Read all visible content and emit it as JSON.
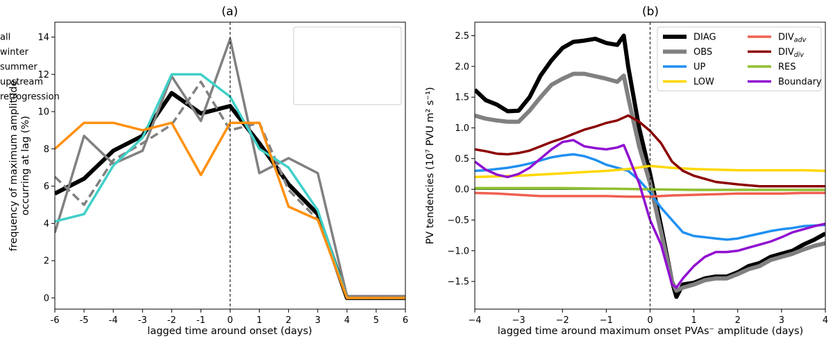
{
  "chart_data": [
    {
      "type": "line",
      "title": "(a)",
      "xlabel": "lagged time around onset (days)",
      "ylabel_lines": [
        "frequency of maximum amplitude",
        "occurring at lag (%)"
      ],
      "xlim": [
        -6,
        6
      ],
      "ylim": [
        -0.6,
        14.8
      ],
      "xticks": [
        -6,
        -5,
        -4,
        -3,
        -2,
        -1,
        0,
        1,
        2,
        3,
        4,
        5,
        6
      ],
      "yticks": [
        0,
        2,
        4,
        6,
        8,
        10,
        12,
        14
      ],
      "grid": false,
      "vline_x": 0,
      "legend_position": "upper-right",
      "series": [
        {
          "name": "all",
          "color": "#000000",
          "width": 6,
          "dash": "",
          "x": [
            -6,
            -5,
            -4,
            -3,
            -2,
            -1,
            0,
            1,
            2,
            3,
            4,
            5,
            6
          ],
          "y": [
            5.6,
            6.4,
            7.9,
            8.7,
            11.0,
            9.9,
            10.3,
            8.3,
            6.1,
            4.5,
            0.0,
            0.0,
            0.0
          ]
        },
        {
          "name": "winter",
          "color": "#808080",
          "width": 3.5,
          "dash": "",
          "x": [
            -6,
            -5,
            -4,
            -3,
            -2,
            -1,
            0,
            1,
            2,
            3,
            4,
            5,
            6
          ],
          "y": [
            3.5,
            8.7,
            7.2,
            7.9,
            11.9,
            9.5,
            13.9,
            6.7,
            7.5,
            6.7,
            0.1,
            0.1,
            0.1
          ]
        },
        {
          "name": "summer",
          "color": "#808080",
          "width": 3.5,
          "dash": "12 6",
          "x": [
            -6,
            -5,
            -4,
            -3,
            -2,
            -1,
            0,
            1,
            2,
            3,
            4,
            5,
            6
          ],
          "y": [
            6.5,
            5.0,
            7.4,
            8.3,
            9.3,
            11.6,
            9.0,
            9.4,
            5.8,
            4.2,
            0.0,
            0.0,
            0.0
          ]
        },
        {
          "name": "upstream",
          "color": "#40d0c8",
          "width": 3.5,
          "dash": "",
          "x": [
            -6,
            -5,
            -4,
            -3,
            -2,
            -1,
            0,
            1,
            2,
            3,
            4,
            5,
            6
          ],
          "y": [
            4.1,
            4.5,
            7.1,
            8.6,
            12.0,
            12.0,
            10.8,
            8.0,
            7.0,
            4.7,
            0.0,
            0.0,
            0.0
          ]
        },
        {
          "name": "retrogression",
          "color": "#ff9010",
          "width": 3.5,
          "dash": "",
          "x": [
            -6,
            -5,
            -4,
            -3,
            -2,
            -1,
            0,
            1,
            2,
            3,
            4,
            5,
            6
          ],
          "y": [
            8.0,
            9.4,
            9.4,
            9.0,
            9.4,
            6.6,
            9.4,
            9.4,
            4.9,
            4.2,
            0.0,
            0.0,
            0.0
          ]
        }
      ]
    },
    {
      "type": "line",
      "title": "(b)",
      "xlabel": "lagged time around maximum onset PVAs⁻ amplitude (days)",
      "ylabel": "PV tendencies (10⁷ PVU m² s⁻¹)",
      "xlim": [
        -4,
        4
      ],
      "ylim": [
        -1.95,
        2.72
      ],
      "xticks": [
        -4,
        -3,
        -2,
        -1,
        0,
        1,
        2,
        3,
        4
      ],
      "yticks": [
        -1.5,
        -1.0,
        -0.5,
        0.0,
        0.5,
        1.0,
        1.5,
        2.0,
        2.5
      ],
      "ytick_labels": [
        "−1.5",
        "−1.0",
        "−0.5",
        "0.0",
        "0.5",
        "1.0",
        "1.5",
        "2.0",
        "2.5"
      ],
      "xtick_labels": [
        "−4",
        "−3",
        "−2",
        "−1",
        "0",
        "1",
        "2",
        "3",
        "4"
      ],
      "grid": false,
      "vline_x": 0,
      "hline_y": 0,
      "hline_color": "#2f6b20",
      "legend_position": "upper-right",
      "series": [
        {
          "name": "DIAG",
          "color": "#000000",
          "width": 6,
          "x": [
            -4.0,
            -3.75,
            -3.5,
            -3.25,
            -3.0,
            -2.75,
            -2.5,
            -2.25,
            -2.0,
            -1.75,
            -1.5,
            -1.25,
            -1.0,
            -0.75,
            -0.6,
            -0.5,
            -0.25,
            0.0,
            0.25,
            0.5,
            0.6,
            0.75,
            1.0,
            1.25,
            1.5,
            1.75,
            2.0,
            2.25,
            2.5,
            2.75,
            3.0,
            3.25,
            3.5,
            3.75,
            4.0
          ],
          "y": [
            1.62,
            1.45,
            1.38,
            1.27,
            1.28,
            1.5,
            1.85,
            2.1,
            2.3,
            2.4,
            2.42,
            2.45,
            2.38,
            2.35,
            2.5,
            2.0,
            1.0,
            0.25,
            -0.6,
            -1.5,
            -1.75,
            -1.55,
            -1.52,
            -1.45,
            -1.42,
            -1.42,
            -1.35,
            -1.25,
            -1.2,
            -1.1,
            -1.05,
            -1.0,
            -0.9,
            -0.82,
            -0.72
          ]
        },
        {
          "name": "OBS",
          "color": "#808080",
          "width": 6,
          "x": [
            -4.0,
            -3.75,
            -3.5,
            -3.25,
            -3.0,
            -2.75,
            -2.5,
            -2.25,
            -2.0,
            -1.75,
            -1.5,
            -1.25,
            -1.0,
            -0.75,
            -0.6,
            -0.5,
            -0.25,
            0.0,
            0.25,
            0.5,
            0.6,
            0.75,
            1.0,
            1.25,
            1.5,
            1.75,
            2.0,
            2.25,
            2.5,
            2.75,
            3.0,
            3.25,
            3.5,
            3.75,
            4.0
          ],
          "y": [
            1.2,
            1.15,
            1.12,
            1.1,
            1.1,
            1.28,
            1.5,
            1.7,
            1.8,
            1.88,
            1.88,
            1.84,
            1.8,
            1.75,
            1.85,
            1.5,
            0.7,
            0.1,
            -0.7,
            -1.5,
            -1.65,
            -1.6,
            -1.55,
            -1.48,
            -1.45,
            -1.45,
            -1.38,
            -1.3,
            -1.25,
            -1.15,
            -1.1,
            -1.05,
            -0.98,
            -0.92,
            -0.88
          ]
        },
        {
          "name": "UP",
          "color": "#2090f0",
          "width": 3.5,
          "x": [
            -4.0,
            -3.75,
            -3.5,
            -3.25,
            -3.0,
            -2.75,
            -2.5,
            -2.25,
            -2.0,
            -1.75,
            -1.5,
            -1.25,
            -1.0,
            -0.75,
            -0.5,
            -0.25,
            0.0,
            0.25,
            0.5,
            0.75,
            1.0,
            1.25,
            1.5,
            1.75,
            2.0,
            2.25,
            2.5,
            2.75,
            3.0,
            3.25,
            3.5,
            3.75,
            4.0
          ],
          "y": [
            0.3,
            0.31,
            0.33,
            0.35,
            0.38,
            0.42,
            0.47,
            0.52,
            0.55,
            0.57,
            0.54,
            0.48,
            0.4,
            0.35,
            0.3,
            0.15,
            -0.05,
            -0.3,
            -0.5,
            -0.7,
            -0.76,
            -0.78,
            -0.8,
            -0.82,
            -0.8,
            -0.76,
            -0.72,
            -0.68,
            -0.65,
            -0.63,
            -0.6,
            -0.59,
            -0.58
          ]
        },
        {
          "name": "LOW",
          "color": "#ffd700",
          "width": 3.5,
          "x": [
            -4.0,
            -3.5,
            -3.0,
            -2.5,
            -2.0,
            -1.5,
            -1.0,
            -0.5,
            0.0,
            0.5,
            1.0,
            1.5,
            2.0,
            2.5,
            3.0,
            3.5,
            4.0
          ],
          "y": [
            0.2,
            0.21,
            0.22,
            0.24,
            0.26,
            0.28,
            0.3,
            0.33,
            0.38,
            0.35,
            0.33,
            0.32,
            0.31,
            0.31,
            0.31,
            0.31,
            0.3
          ]
        },
        {
          "name": "DIV<sub>adv</sub>",
          "legend_main": "DIV",
          "legend_sub": "adv",
          "color": "#f06050",
          "width": 3.5,
          "x": [
            -4.0,
            -3.5,
            -3.0,
            -2.5,
            -2.0,
            -1.5,
            -1.0,
            -0.5,
            0.0,
            0.5,
            1.0,
            1.5,
            2.0,
            2.5,
            3.0,
            3.5,
            4.0
          ],
          "y": [
            -0.06,
            -0.07,
            -0.09,
            -0.11,
            -0.11,
            -0.11,
            -0.11,
            -0.12,
            -0.12,
            -0.1,
            -0.09,
            -0.08,
            -0.07,
            -0.07,
            -0.07,
            -0.06,
            -0.06
          ]
        },
        {
          "name": "DIV<sub>div</sub>",
          "legend_main": "DIV",
          "legend_sub": "div",
          "color": "#8b0000",
          "width": 3.5,
          "x": [
            -4.0,
            -3.75,
            -3.5,
            -3.25,
            -3.0,
            -2.75,
            -2.5,
            -2.25,
            -2.0,
            -1.75,
            -1.5,
            -1.25,
            -1.0,
            -0.75,
            -0.5,
            -0.25,
            0.0,
            0.25,
            0.5,
            0.75,
            1.0,
            1.5,
            2.0,
            2.5,
            3.0,
            3.5,
            4.0
          ],
          "y": [
            0.65,
            0.62,
            0.58,
            0.57,
            0.59,
            0.63,
            0.7,
            0.77,
            0.83,
            0.9,
            0.97,
            1.02,
            1.08,
            1.12,
            1.2,
            1.1,
            0.95,
            0.75,
            0.45,
            0.3,
            0.22,
            0.12,
            0.08,
            0.05,
            0.05,
            0.05,
            0.05
          ]
        },
        {
          "name": "RES",
          "color": "#90c030",
          "width": 3.5,
          "x": [
            -4.0,
            -3.0,
            -2.0,
            -1.0,
            0.0,
            1.0,
            2.0,
            3.0,
            4.0
          ],
          "y": [
            0.02,
            0.02,
            0.02,
            0.01,
            0.0,
            -0.01,
            -0.01,
            -0.01,
            -0.01
          ]
        },
        {
          "name": "Boundary",
          "color": "#9010d0",
          "width": 3.5,
          "x": [
            -4.0,
            -3.75,
            -3.5,
            -3.25,
            -3.0,
            -2.75,
            -2.5,
            -2.25,
            -2.0,
            -1.75,
            -1.5,
            -1.25,
            -1.0,
            -0.75,
            -0.6,
            -0.5,
            -0.25,
            0.0,
            0.25,
            0.5,
            0.6,
            0.75,
            1.0,
            1.25,
            1.5,
            1.75,
            2.0,
            2.25,
            2.5,
            2.75,
            3.0,
            3.25,
            3.5,
            3.75,
            4.0
          ],
          "y": [
            0.45,
            0.32,
            0.24,
            0.2,
            0.25,
            0.35,
            0.5,
            0.65,
            0.77,
            0.8,
            0.7,
            0.67,
            0.65,
            0.68,
            0.72,
            0.55,
            0.1,
            -0.5,
            -0.9,
            -1.55,
            -1.6,
            -1.45,
            -1.25,
            -1.1,
            -1.02,
            -1.02,
            -1.0,
            -0.95,
            -0.9,
            -0.85,
            -0.78,
            -0.7,
            -0.65,
            -0.6,
            -0.56
          ]
        }
      ]
    }
  ]
}
